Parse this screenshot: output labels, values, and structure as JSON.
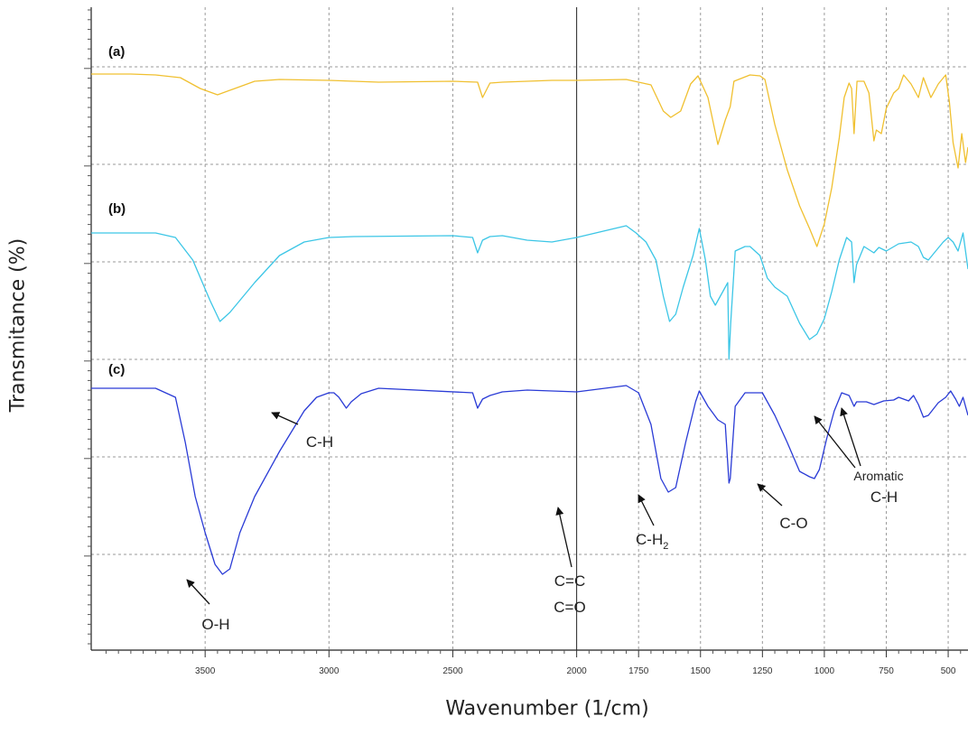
{
  "chart_data": {
    "type": "line",
    "title": "",
    "xlabel": "Wavenumber (1/cm)",
    "ylabel": "Transmitance (%)",
    "xlim": [
      3960,
      420
    ],
    "x_reversed": true,
    "x_ticks": [
      3500,
      3000,
      2500,
      2000,
      1750,
      1500,
      1250,
      1000,
      750,
      500
    ],
    "grid": true,
    "legend": "none",
    "series": [
      {
        "name": "(a)",
        "color": "#f0c030",
        "points": [
          [
            3960,
            4
          ],
          [
            3800,
            4
          ],
          [
            3700,
            5
          ],
          [
            3600,
            8
          ],
          [
            3520,
            20
          ],
          [
            3450,
            27
          ],
          [
            3380,
            20
          ],
          [
            3300,
            12
          ],
          [
            3200,
            10
          ],
          [
            3000,
            11
          ],
          [
            2900,
            12
          ],
          [
            2800,
            13
          ],
          [
            2500,
            12
          ],
          [
            2400,
            13
          ],
          [
            2380,
            30
          ],
          [
            2350,
            14
          ],
          [
            2300,
            13
          ],
          [
            2100,
            11
          ],
          [
            2000,
            11
          ],
          [
            1800,
            10
          ],
          [
            1700,
            16
          ],
          [
            1650,
            45
          ],
          [
            1620,
            52
          ],
          [
            1580,
            45
          ],
          [
            1540,
            15
          ],
          [
            1510,
            6
          ],
          [
            1470,
            30
          ],
          [
            1430,
            82
          ],
          [
            1400,
            55
          ],
          [
            1380,
            40
          ],
          [
            1365,
            12
          ],
          [
            1300,
            5
          ],
          [
            1260,
            6
          ],
          [
            1240,
            10
          ],
          [
            1200,
            60
          ],
          [
            1150,
            110
          ],
          [
            1100,
            150
          ],
          [
            1060,
            175
          ],
          [
            1030,
            195
          ],
          [
            1000,
            170
          ],
          [
            970,
            130
          ],
          [
            940,
            75
          ],
          [
            920,
            30
          ],
          [
            900,
            14
          ],
          [
            890,
            20
          ],
          [
            880,
            70
          ],
          [
            868,
            12
          ],
          [
            840,
            12
          ],
          [
            820,
            25
          ],
          [
            800,
            78
          ],
          [
            790,
            66
          ],
          [
            770,
            70
          ],
          [
            750,
            42
          ],
          [
            720,
            25
          ],
          [
            700,
            20
          ],
          [
            680,
            5
          ],
          [
            650,
            15
          ],
          [
            620,
            30
          ],
          [
            600,
            8
          ],
          [
            570,
            30
          ],
          [
            540,
            15
          ],
          [
            510,
            5
          ],
          [
            495,
            35
          ],
          [
            480,
            80
          ],
          [
            460,
            108
          ],
          [
            445,
            70
          ],
          [
            430,
            102
          ],
          [
            420,
            85
          ]
        ]
      },
      {
        "name": "(b)",
        "color": "#3cc6e6",
        "points": [
          [
            3960,
            0
          ],
          [
            3800,
            0
          ],
          [
            3700,
            0
          ],
          [
            3620,
            5
          ],
          [
            3550,
            30
          ],
          [
            3480,
            75
          ],
          [
            3440,
            98
          ],
          [
            3400,
            88
          ],
          [
            3300,
            55
          ],
          [
            3200,
            25
          ],
          [
            3100,
            10
          ],
          [
            3000,
            5
          ],
          [
            2900,
            4
          ],
          [
            2500,
            3
          ],
          [
            2420,
            5
          ],
          [
            2400,
            22
          ],
          [
            2380,
            8
          ],
          [
            2350,
            4
          ],
          [
            2300,
            3
          ],
          [
            2200,
            8
          ],
          [
            2100,
            10
          ],
          [
            2000,
            5
          ],
          [
            1800,
            -8
          ],
          [
            1760,
            0
          ],
          [
            1720,
            10
          ],
          [
            1680,
            30
          ],
          [
            1650,
            70
          ],
          [
            1625,
            98
          ],
          [
            1600,
            90
          ],
          [
            1570,
            60
          ],
          [
            1530,
            25
          ],
          [
            1505,
            -5
          ],
          [
            1480,
            30
          ],
          [
            1460,
            70
          ],
          [
            1440,
            80
          ],
          [
            1420,
            70
          ],
          [
            1400,
            60
          ],
          [
            1390,
            55
          ],
          [
            1385,
            140
          ],
          [
            1378,
            100
          ],
          [
            1360,
            20
          ],
          [
            1320,
            15
          ],
          [
            1300,
            15
          ],
          [
            1260,
            25
          ],
          [
            1230,
            50
          ],
          [
            1200,
            60
          ],
          [
            1150,
            70
          ],
          [
            1100,
            100
          ],
          [
            1060,
            118
          ],
          [
            1030,
            112
          ],
          [
            1000,
            95
          ],
          [
            970,
            65
          ],
          [
            940,
            30
          ],
          [
            910,
            5
          ],
          [
            890,
            10
          ],
          [
            880,
            55
          ],
          [
            870,
            35
          ],
          [
            840,
            15
          ],
          [
            800,
            22
          ],
          [
            780,
            16
          ],
          [
            750,
            20
          ],
          [
            700,
            12
          ],
          [
            650,
            10
          ],
          [
            620,
            15
          ],
          [
            600,
            27
          ],
          [
            580,
            30
          ],
          [
            550,
            20
          ],
          [
            520,
            10
          ],
          [
            500,
            5
          ],
          [
            480,
            10
          ],
          [
            460,
            20
          ],
          [
            440,
            0
          ],
          [
            420,
            40
          ]
        ]
      },
      {
        "name": "(c)",
        "color": "#2a3bd6",
        "points": [
          [
            3960,
            0
          ],
          [
            3700,
            0
          ],
          [
            3620,
            10
          ],
          [
            3580,
            60
          ],
          [
            3540,
            120
          ],
          [
            3500,
            160
          ],
          [
            3460,
            195
          ],
          [
            3430,
            206
          ],
          [
            3400,
            200
          ],
          [
            3360,
            160
          ],
          [
            3300,
            120
          ],
          [
            3200,
            70
          ],
          [
            3100,
            25
          ],
          [
            3050,
            10
          ],
          [
            3000,
            5
          ],
          [
            2980,
            5
          ],
          [
            2960,
            10
          ],
          [
            2930,
            22
          ],
          [
            2910,
            15
          ],
          [
            2870,
            6
          ],
          [
            2800,
            0
          ],
          [
            2420,
            5
          ],
          [
            2400,
            22
          ],
          [
            2380,
            12
          ],
          [
            2350,
            8
          ],
          [
            2300,
            4
          ],
          [
            2200,
            2
          ],
          [
            2000,
            4
          ],
          [
            1800,
            -3
          ],
          [
            1750,
            5
          ],
          [
            1700,
            40
          ],
          [
            1660,
            100
          ],
          [
            1630,
            115
          ],
          [
            1600,
            110
          ],
          [
            1560,
            60
          ],
          [
            1520,
            15
          ],
          [
            1505,
            3
          ],
          [
            1470,
            20
          ],
          [
            1430,
            35
          ],
          [
            1400,
            40
          ],
          [
            1385,
            105
          ],
          [
            1380,
            100
          ],
          [
            1360,
            20
          ],
          [
            1320,
            5
          ],
          [
            1250,
            5
          ],
          [
            1200,
            30
          ],
          [
            1150,
            60
          ],
          [
            1100,
            92
          ],
          [
            1060,
            98
          ],
          [
            1040,
            100
          ],
          [
            1020,
            90
          ],
          [
            990,
            55
          ],
          [
            960,
            25
          ],
          [
            930,
            5
          ],
          [
            900,
            8
          ],
          [
            880,
            20
          ],
          [
            870,
            15
          ],
          [
            830,
            15
          ],
          [
            800,
            18
          ],
          [
            760,
            14
          ],
          [
            720,
            13
          ],
          [
            700,
            10
          ],
          [
            660,
            14
          ],
          [
            640,
            8
          ],
          [
            620,
            18
          ],
          [
            600,
            32
          ],
          [
            580,
            30
          ],
          [
            540,
            16
          ],
          [
            510,
            10
          ],
          [
            490,
            3
          ],
          [
            470,
            12
          ],
          [
            455,
            20
          ],
          [
            440,
            10
          ],
          [
            420,
            30
          ]
        ]
      }
    ],
    "panel_labels": [
      "(a)",
      "(b)",
      "(c)"
    ],
    "annotations": [
      {
        "text": "O-H",
        "x": 3440,
        "series": "(c)"
      },
      {
        "text": "C-H",
        "x": 2935,
        "series": "(c)"
      },
      {
        "text": "C=C",
        "x": 1630,
        "series": "(c)"
      },
      {
        "text": "C=O",
        "x": 1630,
        "series": "(c)"
      },
      {
        "text": "C-H",
        "sub": "2",
        "x": 1385,
        "series": "(c)"
      },
      {
        "text": "C-O",
        "x": 1030,
        "series": "(c)"
      },
      {
        "text": "Aromatic",
        "x": 820,
        "series": "(c)"
      },
      {
        "text": "C-H",
        "x": 820,
        "series": "(c)"
      }
    ]
  }
}
